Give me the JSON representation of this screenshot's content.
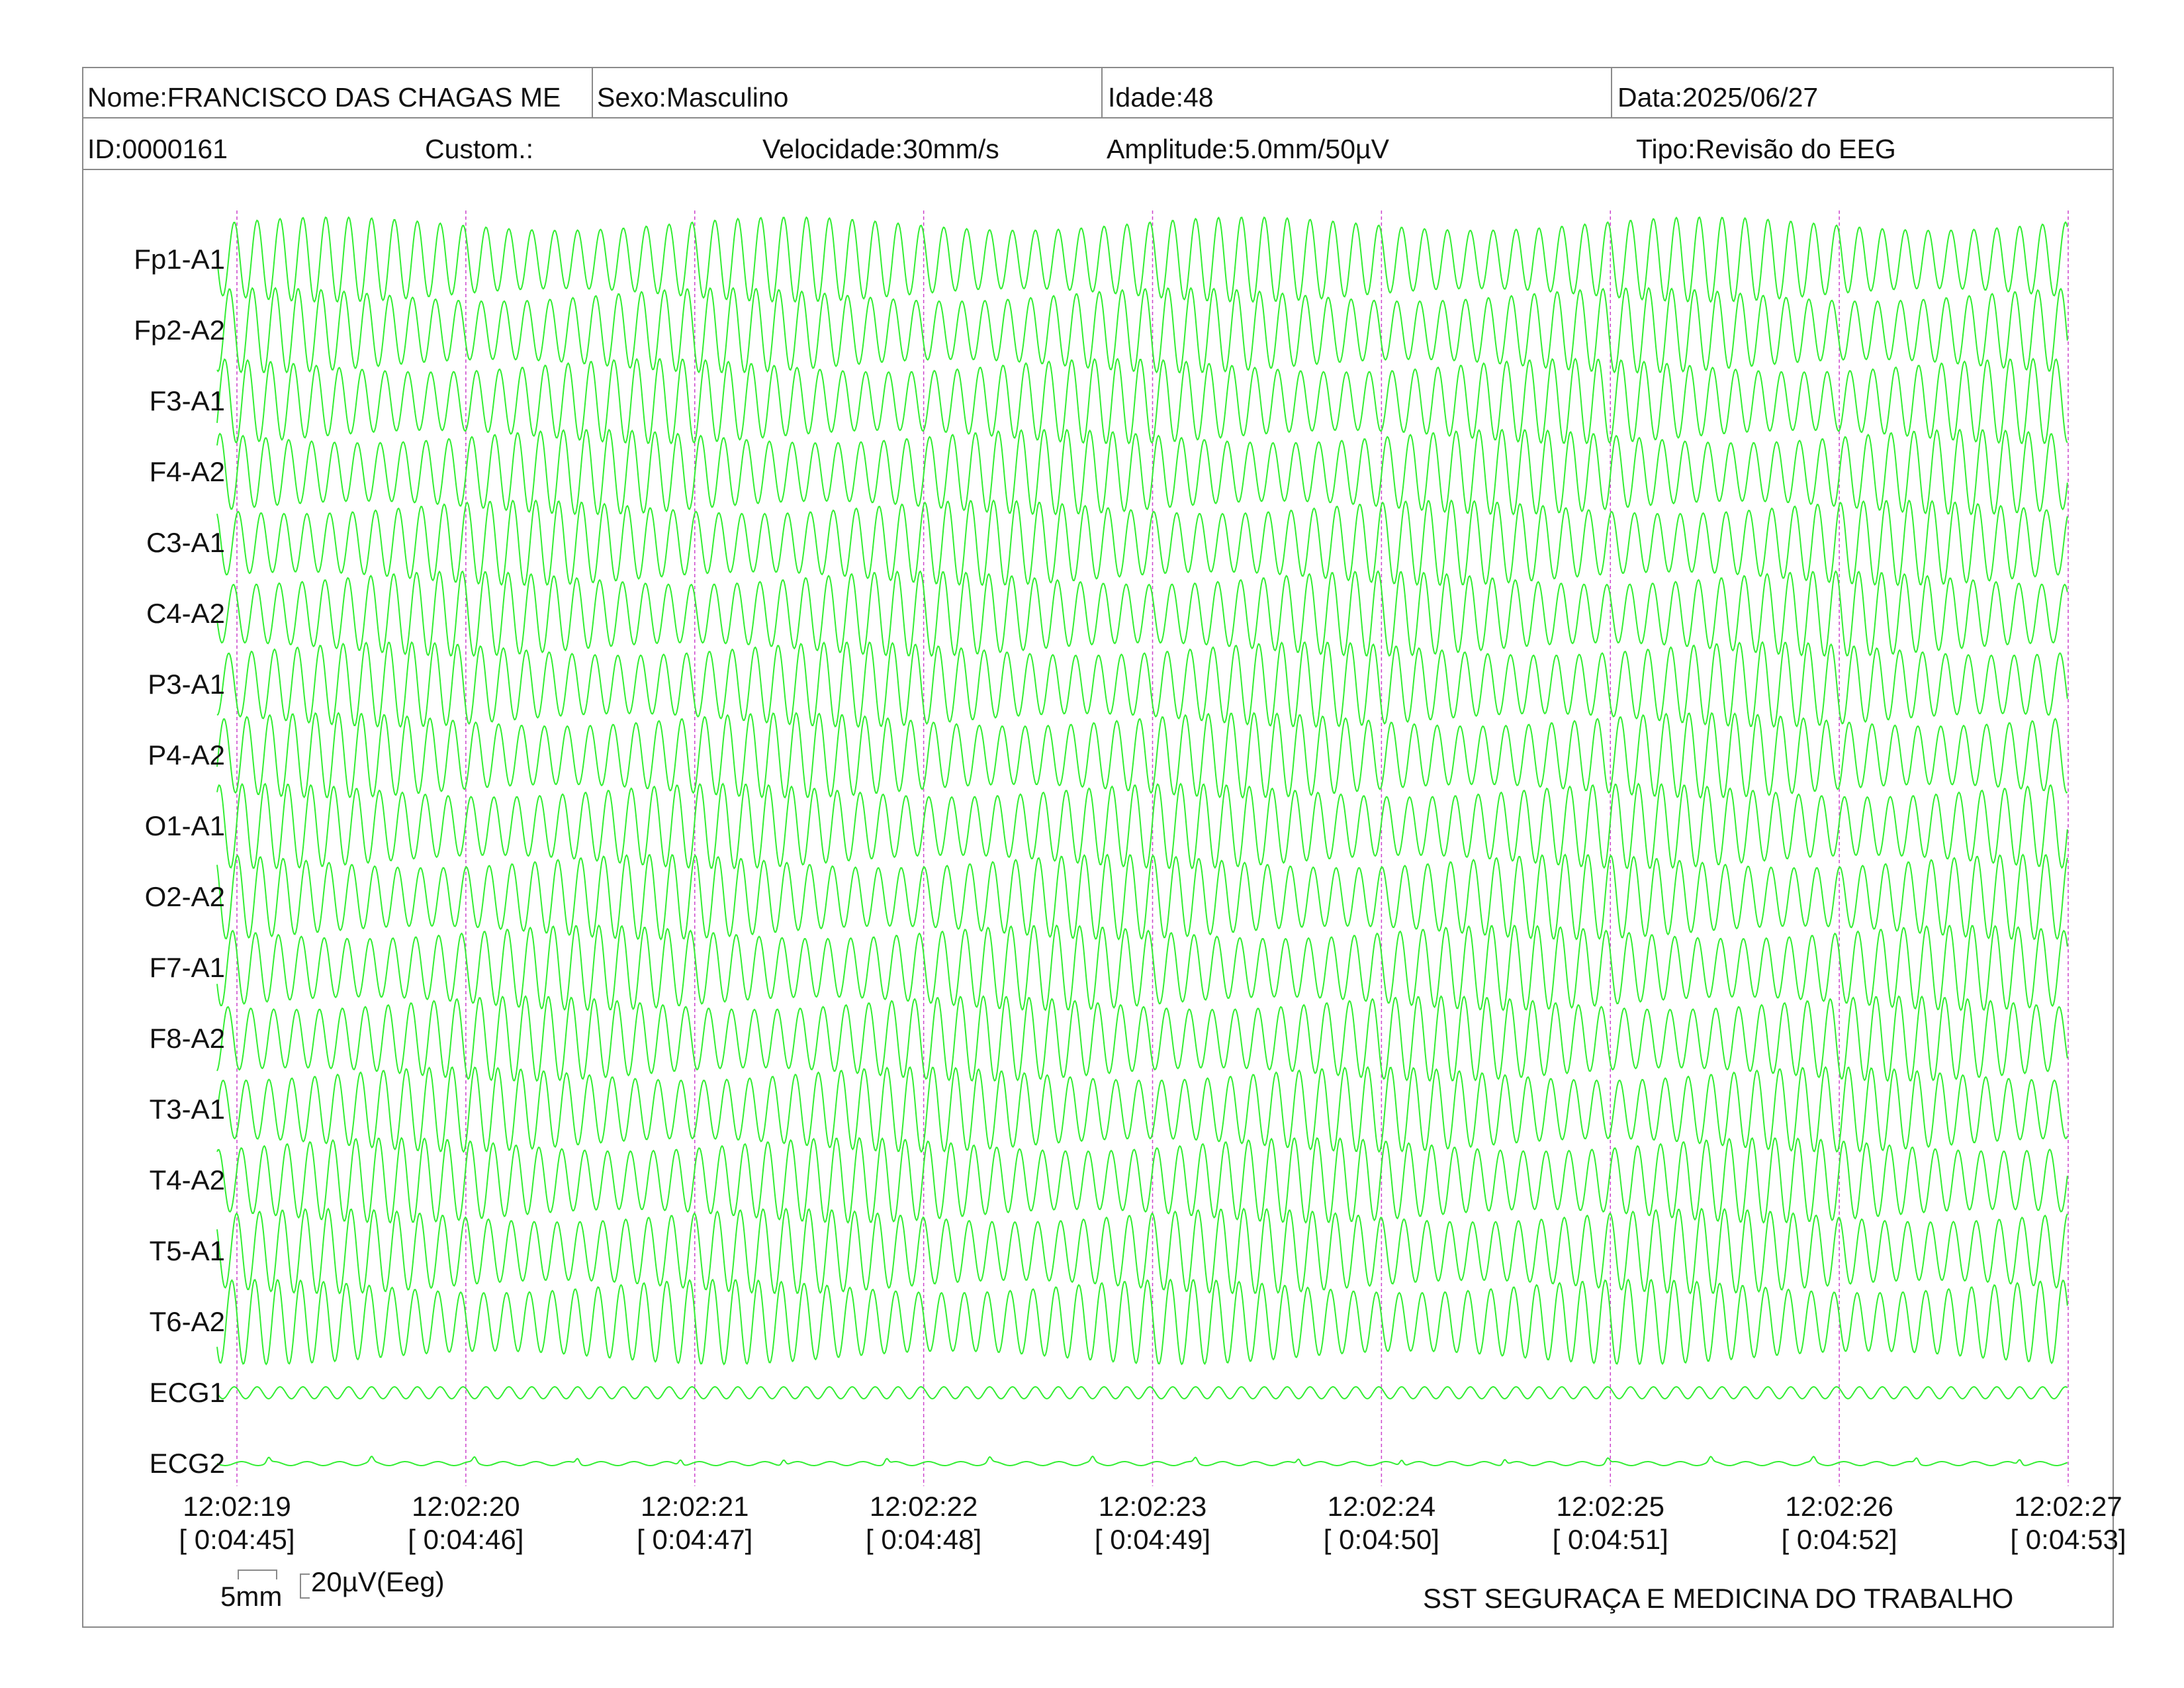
{
  "header": {
    "nome": "Nome:FRANCISCO DAS CHAGAS ME",
    "sexo": "Sexo:Masculino",
    "idade": "Idade:48",
    "data": "Data:2025/06/27",
    "id": "ID:0000161",
    "custom": "Custom.:",
    "velocidade": "Velocidade:30mm/s",
    "amplitude": "Amplitude:5.0mm/50µV",
    "tipo": "Tipo:Revisão do EEG"
  },
  "colors": {
    "trace": "#33ee33",
    "marker": "#cc44cc",
    "border": "#8a8a8a"
  },
  "chart_data": {
    "type": "line",
    "channels": [
      "Fp1-A1",
      "Fp2-A2",
      "F3-A1",
      "F4-A2",
      "C3-A1",
      "C4-A2",
      "P3-A1",
      "P4-A2",
      "O1-A1",
      "O2-A2",
      "F7-A1",
      "F8-A2",
      "T3-A1",
      "T4-A2",
      "T5-A1",
      "T6-A2",
      "ECG1",
      "ECG2"
    ],
    "x_ticks": [
      "12:02:19",
      "12:02:20",
      "12:02:21",
      "12:02:22",
      "12:02:23",
      "12:02:24",
      "12:02:25",
      "12:02:26",
      "12:02:27"
    ],
    "x_ticks_elapsed": [
      "[ 0:04:45]",
      "[ 0:04:46]",
      "[ 0:04:47]",
      "[ 0:04:48]",
      "[ 0:04:49]",
      "[ 0:04:50]",
      "[ 0:04:51]",
      "[ 0:04:52]",
      "[ 0:04:53]"
    ],
    "eeg_frequency_hz": 10,
    "eeg_envelope_period_s": 2,
    "ecg1_frequency_hz": 10,
    "ecg2_beat_interval_s": 0.45
  },
  "footer": {
    "scale_time": "5mm",
    "scale_amplitude": "20µV(Eeg)",
    "clinic": "SST SEGURAÇA E MEDICINA DO TRABALHO"
  }
}
